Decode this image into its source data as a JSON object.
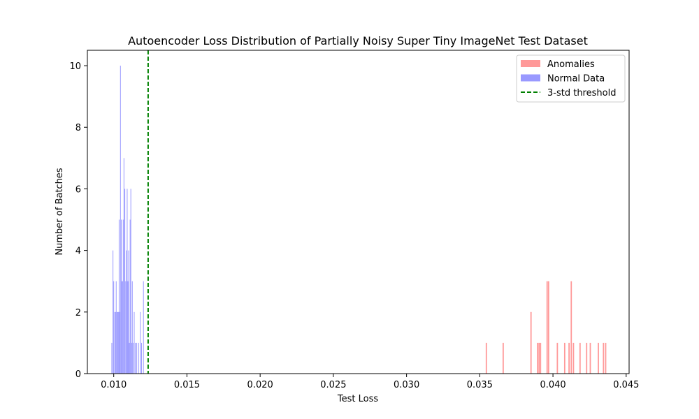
{
  "chart_data": {
    "type": "bar",
    "title": "Autoencoder Loss Distribution of Partially Noisy Super Tiny ImageNet Test Dataset",
    "xlabel": "Test Loss",
    "ylabel": "Number of Batches",
    "xlim": [
      0.0082,
      0.0452
    ],
    "ylim": [
      0,
      10.5
    ],
    "x_ticks": [
      0.01,
      0.015,
      0.02,
      0.025,
      0.03,
      0.035,
      0.04,
      0.045
    ],
    "x_tick_labels": [
      "0.010",
      "0.015",
      "0.020",
      "0.025",
      "0.030",
      "0.035",
      "0.040",
      "0.045"
    ],
    "y_ticks": [
      0,
      2,
      4,
      6,
      8,
      10
    ],
    "y_tick_labels": [
      "0",
      "2",
      "4",
      "6",
      "8",
      "10"
    ],
    "grid": false,
    "legend_position": "top-right",
    "threshold": {
      "name": "3-std threshold",
      "x": 0.01235,
      "color": "#008000",
      "style": "dashed"
    },
    "series": [
      {
        "name": "Anomalies",
        "color": "#ff9999",
        "bin_width": 8.5e-05,
        "bins": [
          {
            "x": 0.03545,
            "count": 1
          },
          {
            "x": 0.0366,
            "count": 1
          },
          {
            "x": 0.0385,
            "count": 2
          },
          {
            "x": 0.03895,
            "count": 1
          },
          {
            "x": 0.03905,
            "count": 1
          },
          {
            "x": 0.03915,
            "count": 1
          },
          {
            "x": 0.0396,
            "count": 3
          },
          {
            "x": 0.0397,
            "count": 3
          },
          {
            "x": 0.0403,
            "count": 1
          },
          {
            "x": 0.0408,
            "count": 1
          },
          {
            "x": 0.0411,
            "count": 1
          },
          {
            "x": 0.04125,
            "count": 3
          },
          {
            "x": 0.0414,
            "count": 1
          },
          {
            "x": 0.04185,
            "count": 1
          },
          {
            "x": 0.0423,
            "count": 1
          },
          {
            "x": 0.04255,
            "count": 1
          },
          {
            "x": 0.0431,
            "count": 1
          },
          {
            "x": 0.04345,
            "count": 1
          },
          {
            "x": 0.0436,
            "count": 1
          }
        ]
      },
      {
        "name": "Normal Data",
        "color": "#9999ff",
        "bin_width": 1.05e-05,
        "bins": [
          {
            "x": 0.00985,
            "count": 1
          },
          {
            "x": 0.00993,
            "count": 4
          },
          {
            "x": 0.00998,
            "count": 3
          },
          {
            "x": 0.01005,
            "count": 2
          },
          {
            "x": 0.01011,
            "count": 2
          },
          {
            "x": 0.01015,
            "count": 3
          },
          {
            "x": 0.0102,
            "count": 2
          },
          {
            "x": 0.01026,
            "count": 2
          },
          {
            "x": 0.0103,
            "count": 2
          },
          {
            "x": 0.01035,
            "count": 5
          },
          {
            "x": 0.0104,
            "count": 2
          },
          {
            "x": 0.01044,
            "count": 10
          },
          {
            "x": 0.0105,
            "count": 5
          },
          {
            "x": 0.01055,
            "count": 3
          },
          {
            "x": 0.0106,
            "count": 3
          },
          {
            "x": 0.01063,
            "count": 5
          },
          {
            "x": 0.01068,
            "count": 7
          },
          {
            "x": 0.01074,
            "count": 6
          },
          {
            "x": 0.0108,
            "count": 3
          },
          {
            "x": 0.01085,
            "count": 4
          },
          {
            "x": 0.0109,
            "count": 6
          },
          {
            "x": 0.01095,
            "count": 3
          },
          {
            "x": 0.011,
            "count": 4
          },
          {
            "x": 0.01105,
            "count": 1
          },
          {
            "x": 0.0111,
            "count": 5
          },
          {
            "x": 0.01115,
            "count": 6
          },
          {
            "x": 0.0112,
            "count": 1
          },
          {
            "x": 0.01125,
            "count": 3
          },
          {
            "x": 0.0113,
            "count": 1
          },
          {
            "x": 0.01138,
            "count": 2
          },
          {
            "x": 0.01145,
            "count": 1
          },
          {
            "x": 0.01155,
            "count": 1
          },
          {
            "x": 0.01168,
            "count": 1
          },
          {
            "x": 0.0118,
            "count": 2
          },
          {
            "x": 0.01188,
            "count": 1
          },
          {
            "x": 0.01201,
            "count": 3
          }
        ]
      }
    ]
  }
}
